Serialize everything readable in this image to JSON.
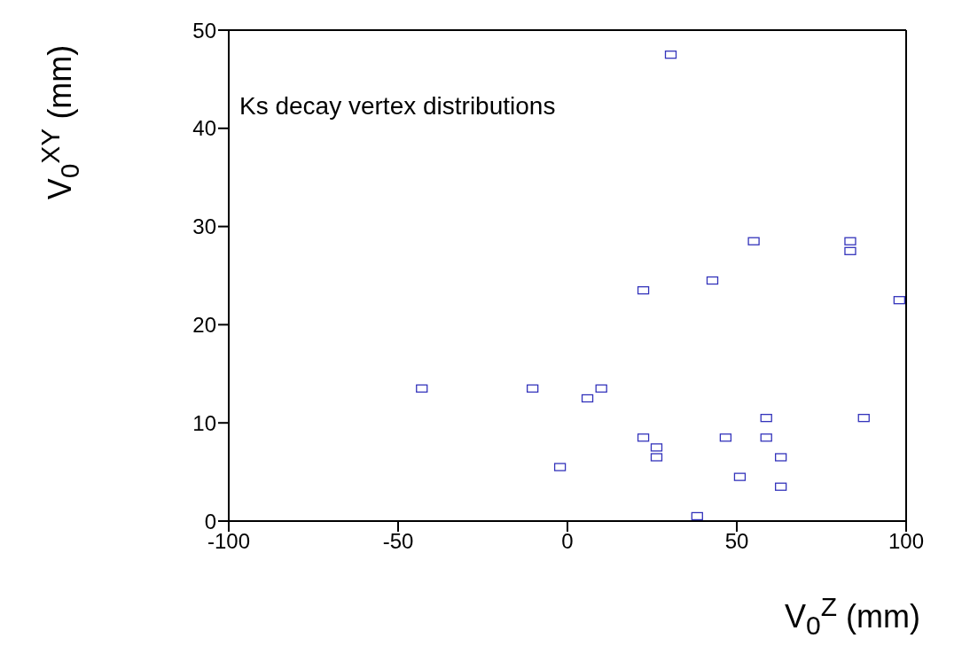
{
  "chart_data": {
    "type": "scatter",
    "xlabel": "V$_{0}$$^{Z}$ (mm)",
    "ylabel": "V$_{0}$$^{XY}$ (mm)",
    "annotations": [
      "Ks decay vertex distributions"
    ],
    "xlim": [
      -100,
      100
    ],
    "xticks": [
      -100,
      -50,
      0,
      50,
      100
    ],
    "ylim": [
      0,
      50
    ],
    "yticks": [
      0,
      10,
      20,
      30,
      40,
      50
    ],
    "marker": "square",
    "series": [
      {
        "color": "#3333bb",
        "x": [
          30.5,
          83.5,
          83.5,
          55,
          42.8,
          22.4,
          98,
          -43,
          -10.3,
          10,
          5.9,
          58.7,
          87.5,
          22.4,
          46.7,
          58.7,
          26.3,
          26.3,
          63,
          -2.2,
          50.9,
          63,
          38.3
        ],
        "values": [
          47.5,
          28.5,
          27.5,
          28.5,
          24.5,
          23.5,
          22.5,
          13.5,
          13.5,
          13.5,
          12.5,
          10.5,
          10.5,
          8.5,
          8.5,
          8.5,
          7.5,
          6.5,
          6.5,
          5.5,
          4.5,
          3.5,
          0.5
        ]
      }
    ]
  }
}
